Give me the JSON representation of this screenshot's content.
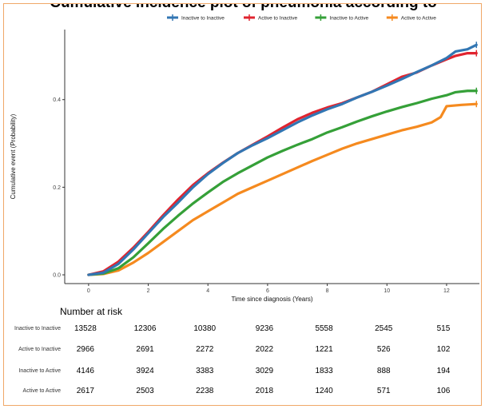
{
  "title": "Cumulative incidence plot of pneumonia according to",
  "chart_data": {
    "type": "line",
    "xlabel": "Time since diagnosis (Years)",
    "ylabel": "Cumulative event (Probability)",
    "xlim": [
      -0.8,
      13.1
    ],
    "ylim": [
      -0.02,
      0.56
    ],
    "x_ticks": [
      "0",
      "2",
      "4",
      "6",
      "8",
      "10",
      "12"
    ],
    "y_ticks": [
      "0.0",
      "0.2",
      "0.4"
    ],
    "grid": false,
    "legend_position": "top",
    "series": [
      {
        "name": "Inactive to Inactive",
        "color": "#3276b3",
        "x": [
          0,
          0.5,
          1,
          1.5,
          2,
          2.5,
          3,
          3.5,
          4,
          4.5,
          5,
          5.5,
          6,
          6.5,
          7,
          7.5,
          8,
          8.5,
          9,
          9.5,
          10,
          10.5,
          11,
          11.5,
          12,
          12.3,
          12.7,
          13
        ],
        "y": [
          0,
          0.005,
          0.025,
          0.058,
          0.095,
          0.132,
          0.165,
          0.2,
          0.23,
          0.255,
          0.278,
          0.296,
          0.312,
          0.33,
          0.348,
          0.364,
          0.378,
          0.39,
          0.405,
          0.418,
          0.432,
          0.447,
          0.463,
          0.478,
          0.495,
          0.51,
          0.515,
          0.525
        ]
      },
      {
        "name": "Active to Inactive",
        "color": "#e0242f",
        "x": [
          0,
          0.5,
          1,
          1.5,
          2,
          2.5,
          3,
          3.5,
          4,
          4.5,
          5,
          5.5,
          6,
          6.5,
          7,
          7.5,
          8,
          8.5,
          9,
          9.5,
          10,
          10.5,
          11,
          11.5,
          12,
          12.3,
          12.7,
          13
        ],
        "y": [
          0,
          0.008,
          0.03,
          0.062,
          0.098,
          0.136,
          0.172,
          0.205,
          0.232,
          0.256,
          0.278,
          0.297,
          0.316,
          0.336,
          0.355,
          0.37,
          0.382,
          0.392,
          0.405,
          0.418,
          0.435,
          0.452,
          0.462,
          0.478,
          0.492,
          0.5,
          0.506,
          0.506
        ]
      },
      {
        "name": "Inactive to Active",
        "color": "#35a038",
        "x": [
          0,
          0.5,
          1,
          1.5,
          2,
          2.5,
          3,
          3.5,
          4,
          4.5,
          5,
          5.5,
          6,
          6.5,
          7,
          7.5,
          8,
          8.5,
          9,
          9.5,
          10,
          10.5,
          11,
          11.5,
          12,
          12.3,
          12.7,
          13
        ],
        "y": [
          0,
          0.003,
          0.015,
          0.04,
          0.072,
          0.105,
          0.135,
          0.163,
          0.188,
          0.212,
          0.232,
          0.25,
          0.268,
          0.283,
          0.297,
          0.31,
          0.325,
          0.337,
          0.35,
          0.362,
          0.373,
          0.383,
          0.392,
          0.402,
          0.41,
          0.417,
          0.42,
          0.42
        ]
      },
      {
        "name": "Active to Active",
        "color": "#f58a1f",
        "x": [
          0,
          0.5,
          1,
          1.5,
          2,
          2.5,
          3,
          3.5,
          4,
          4.5,
          5,
          5.5,
          6,
          6.5,
          7,
          7.5,
          8,
          8.5,
          9,
          9.5,
          10,
          10.5,
          11,
          11.5,
          11.8,
          12,
          12.5,
          13
        ],
        "y": [
          0,
          0.002,
          0.01,
          0.028,
          0.05,
          0.075,
          0.1,
          0.125,
          0.145,
          0.165,
          0.185,
          0.2,
          0.215,
          0.23,
          0.245,
          0.26,
          0.274,
          0.288,
          0.3,
          0.31,
          0.32,
          0.33,
          0.338,
          0.348,
          0.36,
          0.385,
          0.388,
          0.39
        ]
      }
    ]
  },
  "risk_table": {
    "title": "Number at risk",
    "time_points": [
      0,
      2,
      4,
      6,
      8,
      10,
      12
    ],
    "rows": [
      {
        "label": "Inactive to Inactive",
        "values": [
          "13528",
          "12306",
          "10380",
          "9236",
          "5558",
          "2545",
          "515"
        ]
      },
      {
        "label": "Active to Inactive",
        "values": [
          "2966",
          "2691",
          "2272",
          "2022",
          "1221",
          "526",
          "102"
        ]
      },
      {
        "label": "Inactive to Active",
        "values": [
          "4146",
          "3924",
          "3383",
          "3029",
          "1833",
          "888",
          "194"
        ]
      },
      {
        "label": "Active to Active",
        "values": [
          "2617",
          "2503",
          "2238",
          "2018",
          "1240",
          "571",
          "106"
        ]
      }
    ]
  }
}
